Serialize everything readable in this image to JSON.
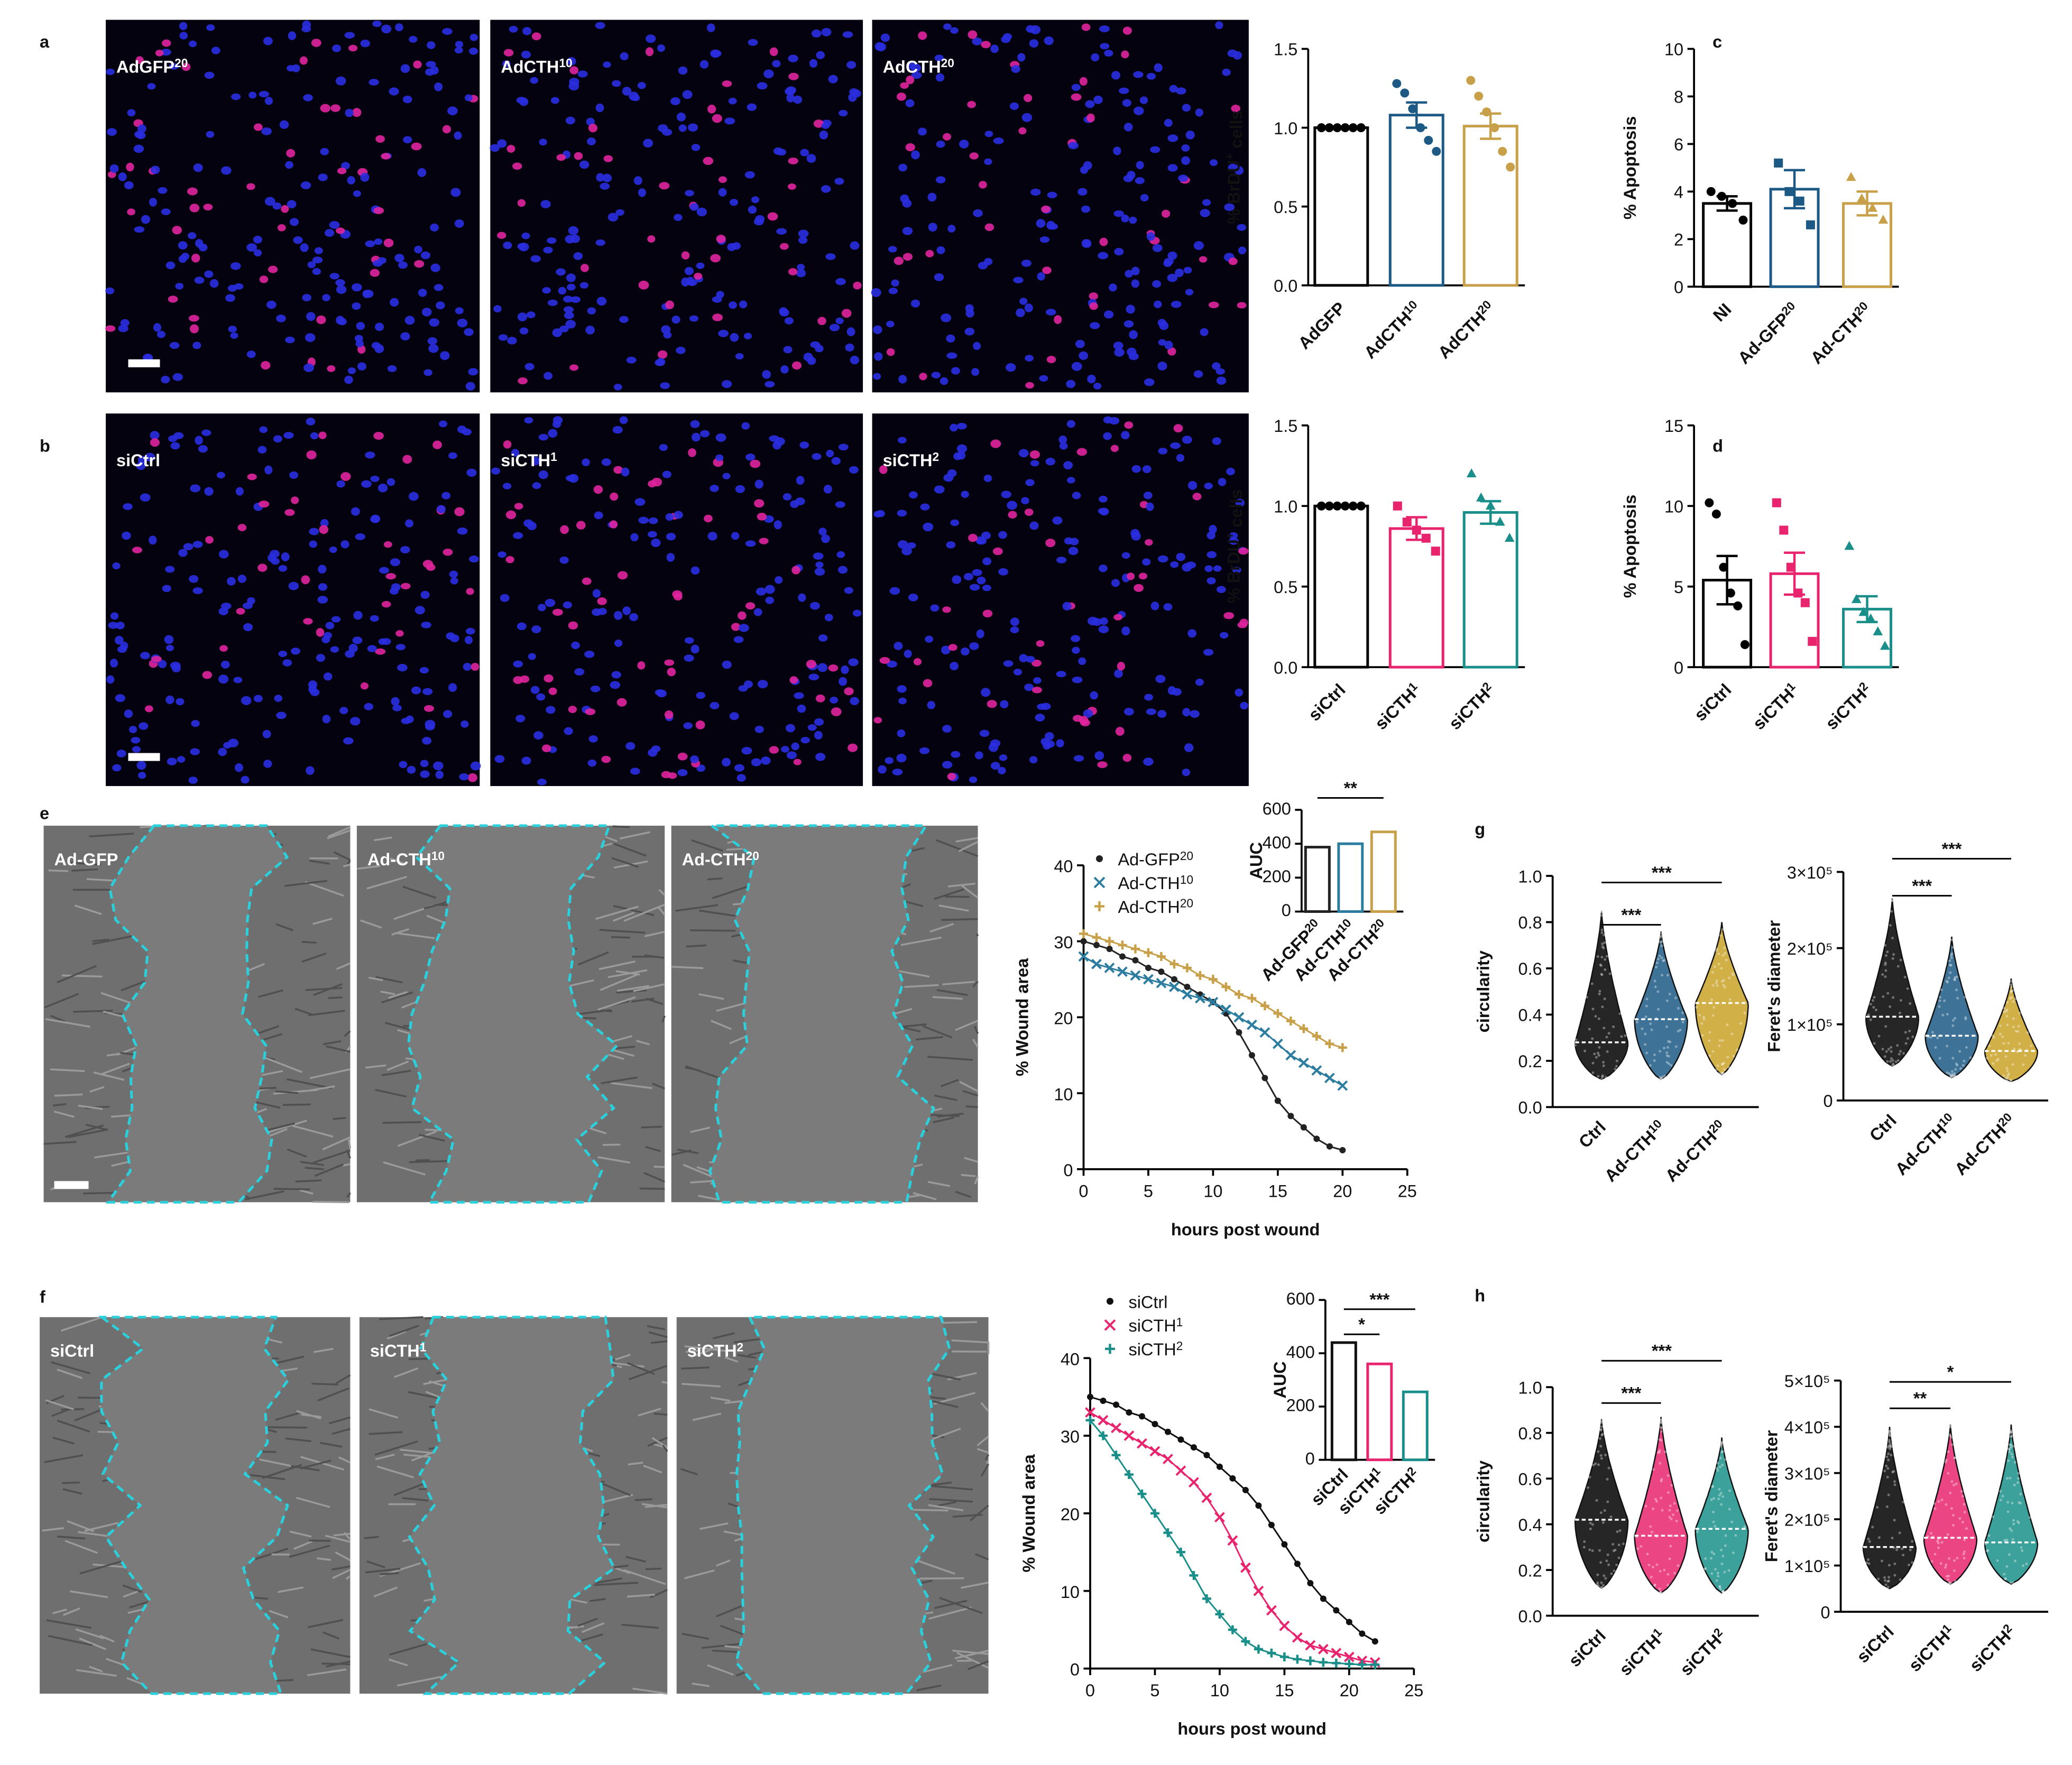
{
  "panel_letters": [
    "a",
    "b",
    "c",
    "d",
    "e",
    "f",
    "g",
    "h"
  ],
  "image_labels": {
    "a": [
      {
        "text": "AdGFP",
        "sup": "20"
      },
      {
        "text": "AdCTH",
        "sup": "10"
      },
      {
        "text": "AdCTH",
        "sup": "20"
      }
    ],
    "b": [
      "siCtrl",
      {
        "text": "siCTH",
        "sup": "1"
      },
      {
        "text": "siCTH",
        "sup": "2"
      }
    ],
    "e": [
      "Ad-GFP",
      {
        "text": "Ad-CTH",
        "sup": "10"
      },
      {
        "text": "Ad-CTH",
        "sup": "20"
      }
    ],
    "f": [
      "siCtrl",
      {
        "text": "siCTH",
        "sup": "1"
      },
      {
        "text": "siCTH",
        "sup": "2"
      }
    ]
  },
  "chart_data": [
    {
      "type": "bar",
      "ylabel": {
        "text": "% BrDU",
        "sup": "+",
        "after": " cells"
      },
      "categories": [
        "AdGFP",
        {
          "text": "AdCTH",
          "sup": "10"
        },
        {
          "text": "AdCTH",
          "sup": "20"
        }
      ],
      "values": [
        1,
        1.08,
        1.01
      ],
      "errors": [
        0,
        0.08,
        0.08
      ],
      "points": [
        [
          1,
          1,
          1,
          1,
          1,
          1
        ],
        [
          1.28,
          1.22,
          1.12,
          1,
          0.92,
          0.85
        ],
        [
          1.3,
          1.2,
          1.1,
          1,
          0.85,
          0.75
        ]
      ],
      "colors": [
        "#000000",
        "#1c5a85",
        "#c9a04a"
      ],
      "markers": [
        "circle",
        "circle",
        "circle"
      ],
      "ylim": [
        0,
        1.5
      ],
      "yticks": [
        {
          "value": 0,
          "label": "0.0"
        },
        0.5,
        {
          "value": 1,
          "label": "1.0"
        },
        1.5
      ]
    },
    {
      "type": "bar",
      "ylabel": "% Apoptosis",
      "categories": [
        "NI",
        {
          "text": "Ad-GFP",
          "sup": "20"
        },
        {
          "text": "Ad-CTH",
          "sup": "20"
        }
      ],
      "values": [
        3.5,
        4.1,
        3.5
      ],
      "errors": [
        0.3,
        0.8,
        0.5
      ],
      "points": [
        [
          4.0,
          3.8,
          3.5,
          2.8
        ],
        [
          5.2,
          4.0,
          3.6,
          2.6
        ],
        [
          4.6,
          3.7,
          3.3,
          2.8
        ]
      ],
      "colors": [
        "#000000",
        "#1c5a85",
        "#c9a04a"
      ],
      "markers": [
        "circle",
        "square",
        "triangle"
      ],
      "ylim": [
        0,
        10
      ],
      "yticks": [
        0,
        2,
        4,
        6,
        8,
        10
      ]
    },
    {
      "type": "bar",
      "ylabel": {
        "text": "% BrDU",
        "sup": "+",
        "after": " cells"
      },
      "categories": [
        "siCtrl",
        {
          "text": "siCTH",
          "sup": "1"
        },
        {
          "text": "siCTH",
          "sup": "2"
        }
      ],
      "values": [
        1,
        0.86,
        0.96
      ],
      "errors": [
        0,
        0.07,
        0.07
      ],
      "points": [
        [
          1,
          1,
          1,
          1,
          1,
          1
        ],
        [
          1.0,
          0.9,
          0.85,
          0.8,
          0.72
        ],
        [
          1.2,
          1.05,
          1.0,
          0.9,
          0.8
        ]
      ],
      "colors": [
        "#000000",
        "#e8246e",
        "#1a8f8a"
      ],
      "markers": [
        "circle",
        "square",
        "triangle"
      ],
      "ylim": [
        0,
        1.5
      ],
      "yticks": [
        {
          "value": 0,
          "label": "0.0"
        },
        0.5,
        {
          "value": 1,
          "label": "1.0"
        },
        1.5
      ]
    },
    {
      "type": "bar",
      "ylabel": "% Apoptosis",
      "categories": [
        "siCtrl",
        {
          "text": "siCTH",
          "sup": "1"
        },
        {
          "text": "siCTH",
          "sup": "2"
        }
      ],
      "values": [
        5.4,
        5.8,
        3.6
      ],
      "errors": [
        1.5,
        1.3,
        0.8
      ],
      "points": [
        [
          10.2,
          9.5,
          6.2,
          4.6,
          3.8,
          1.4
        ],
        [
          10.2,
          8.5,
          6.2,
          4.6,
          4.0,
          1.6
        ],
        [
          7.5,
          4.2,
          3.4,
          3.0,
          2.2,
          1.3
        ]
      ],
      "colors": [
        "#000000",
        "#e8246e",
        "#1a8f8a"
      ],
      "markers": [
        "circle",
        "square",
        "triangle"
      ],
      "ylim": [
        0,
        15
      ],
      "yticks": [
        0,
        5,
        10,
        15
      ]
    },
    {
      "type": "line",
      "xlabel": "hours post wound",
      "ylabel": "% Wound area",
      "legend": "top-left",
      "x": [
        0,
        1,
        2,
        3,
        4,
        5,
        6,
        7,
        8,
        9,
        10,
        11,
        12,
        13,
        14,
        15,
        16,
        17,
        18,
        19,
        20
      ],
      "xlim": [
        0,
        25
      ],
      "xticks": [
        0,
        5,
        10,
        15,
        20,
        25
      ],
      "ylim": [
        0,
        40
      ],
      "yticks": [
        0,
        10,
        20,
        30,
        40
      ],
      "series": [
        {
          "name": {
            "text": "Ad-GFP",
            "sup": "20"
          },
          "color": "#222222",
          "marker": "dot",
          "values": [
            30,
            29.5,
            29,
            28,
            27.5,
            26.5,
            26,
            25,
            24,
            23,
            22,
            20.5,
            18,
            15,
            12,
            9,
            7,
            5.5,
            4,
            3,
            2.5
          ]
        },
        {
          "name": {
            "text": "Ad-CTH",
            "sup": "10"
          },
          "color": "#2c7da0",
          "marker": "x",
          "values": [
            28,
            27,
            26.5,
            26,
            25.5,
            25,
            24.5,
            24,
            23,
            22.5,
            22,
            21,
            20,
            19,
            18,
            16.5,
            15,
            14,
            13,
            12,
            11
          ]
        },
        {
          "name": {
            "text": "Ad-CTH",
            "sup": "20"
          },
          "color": "#c9a04a",
          "marker": "plus",
          "values": [
            31,
            30.5,
            30,
            29.5,
            29,
            28.5,
            28,
            27,
            26.5,
            25.5,
            25,
            24,
            23,
            22.5,
            21.5,
            20.5,
            19.5,
            18.5,
            17.5,
            16.5,
            16
          ]
        }
      ],
      "inset": {
        "type": "bar",
        "ylabel": "AUC",
        "categories": [
          {
            "text": "Ad-GFP",
            "sup": "20"
          },
          {
            "text": "Ad-CTH",
            "sup": "10"
          },
          {
            "text": "Ad-CTH",
            "sup": "20"
          }
        ],
        "values": [
          380,
          400,
          470
        ],
        "colors": [
          "#222222",
          "#2c7da0",
          "#c9a04a"
        ],
        "ylim": [
          0,
          600
        ],
        "yticks": [
          0,
          200,
          400,
          600
        ],
        "significance": [
          {
            "from": 0,
            "to": 2,
            "label": "**"
          }
        ]
      }
    },
    {
      "type": "violin",
      "ylabel": "circularity",
      "categories": [
        "Ctrl",
        {
          "text": "Ad-CTH",
          "sup": "10"
        },
        {
          "text": "Ad-CTH",
          "sup": "20"
        }
      ],
      "min": [
        0.12,
        0.12,
        0.14
      ],
      "median": [
        0.28,
        0.38,
        0.45
      ],
      "max": [
        0.85,
        0.76,
        0.8
      ],
      "colors": [
        "#000000",
        "#1c5a85",
        "#c9a227"
      ],
      "ylim": [
        0,
        1
      ],
      "yticks": [
        {
          "value": 0,
          "label": "0.0"
        },
        0.2,
        0.4,
        0.6,
        0.8,
        {
          "value": 1,
          "label": "1.0"
        }
      ],
      "significance": [
        {
          "from": 0,
          "to": 1,
          "label": "***"
        },
        {
          "from": 0,
          "to": 2,
          "label": "***"
        }
      ]
    },
    {
      "type": "violin",
      "ylabel": "Feret's diameter",
      "categories": [
        "Ctrl",
        {
          "text": "Ad-CTH",
          "sup": "10"
        },
        {
          "text": "Ad-CTH",
          "sup": "20"
        }
      ],
      "min": [
        45000,
        30000,
        25000
      ],
      "median": [
        110000,
        85000,
        65000
      ],
      "max": [
        265000,
        215000,
        160000
      ],
      "colors": [
        "#000000",
        "#1c5a85",
        "#c9a227"
      ],
      "ylim": [
        0,
        300000
      ],
      "yticks": [
        0,
        {
          "value": 100000,
          "label": "1×10⁵"
        },
        {
          "value": 200000,
          "label": "2×10⁵"
        },
        {
          "value": 300000,
          "label": "3×10⁵"
        }
      ],
      "significance": [
        {
          "from": 0,
          "to": 1,
          "label": "***"
        },
        {
          "from": 0,
          "to": 2,
          "label": "***"
        }
      ]
    },
    {
      "type": "line",
      "xlabel": "hours post wound",
      "ylabel": "% Wound area",
      "legend": "top-left",
      "x": [
        0,
        1,
        2,
        3,
        4,
        5,
        6,
        7,
        8,
        9,
        10,
        11,
        12,
        13,
        14,
        15,
        16,
        17,
        18,
        19,
        20,
        21,
        22
      ],
      "xlim": [
        0,
        25
      ],
      "xticks": [
        0,
        5,
        10,
        15,
        20,
        25
      ],
      "ylim": [
        0,
        40
      ],
      "yticks": [
        0,
        10,
        20,
        30,
        40
      ],
      "series": [
        {
          "name": "siCtrl",
          "color": "#111111",
          "marker": "dot",
          "values": [
            35,
            34.5,
            34,
            33,
            32.5,
            31.5,
            30.5,
            29.5,
            28.5,
            27.5,
            26,
            24.5,
            23,
            21,
            18.5,
            16,
            13.5,
            11,
            9,
            7.5,
            6,
            4.5,
            3.5
          ]
        },
        {
          "name": {
            "text": "siCTH",
            "sup": "1"
          },
          "color": "#e8246e",
          "marker": "x",
          "values": [
            33,
            32,
            31,
            30,
            29,
            28,
            27,
            25.5,
            24,
            22,
            19.5,
            16.5,
            13,
            10,
            7.5,
            5.5,
            4,
            3,
            2.5,
            2,
            1.5,
            1,
            0.8
          ]
        },
        {
          "name": {
            "text": "siCTH",
            "sup": "2"
          },
          "color": "#1a8f8a",
          "marker": "plus",
          "values": [
            32,
            30,
            27.5,
            25,
            22.5,
            20,
            17.5,
            15,
            12,
            9,
            7,
            5,
            3.5,
            2.5,
            2,
            1.5,
            1.2,
            1,
            0.8,
            0.7,
            0.6,
            0.5,
            0.5
          ]
        }
      ],
      "inset": {
        "type": "bar",
        "ylabel": "AUC",
        "categories": [
          "siCtrl",
          {
            "text": "siCTH",
            "sup": "1"
          },
          {
            "text": "siCTH",
            "sup": "2"
          }
        ],
        "values": [
          440,
          360,
          255
        ],
        "colors": [
          "#111111",
          "#e8246e",
          "#1a8f8a"
        ],
        "ylim": [
          0,
          600
        ],
        "yticks": [
          0,
          200,
          400,
          600
        ],
        "significance": [
          {
            "from": 0,
            "to": 1,
            "label": "*"
          },
          {
            "from": 0,
            "to": 2,
            "label": "***"
          }
        ]
      }
    },
    {
      "type": "violin",
      "ylabel": "circularity",
      "categories": [
        "siCtrl",
        {
          "text": "siCTH",
          "sup": "1"
        },
        {
          "text": "siCTH",
          "sup": "2"
        }
      ],
      "min": [
        0.12,
        0.1,
        0.1
      ],
      "median": [
        0.42,
        0.35,
        0.38
      ],
      "max": [
        0.86,
        0.87,
        0.78
      ],
      "colors": [
        "#000000",
        "#e8246e",
        "#1a8f8a"
      ],
      "ylim": [
        0,
        1
      ],
      "yticks": [
        {
          "value": 0,
          "label": "0.0"
        },
        0.2,
        0.4,
        0.6,
        0.8,
        {
          "value": 1,
          "label": "1.0"
        }
      ],
      "significance": [
        {
          "from": 0,
          "to": 1,
          "label": "***"
        },
        {
          "from": 0,
          "to": 2,
          "label": "***"
        }
      ]
    },
    {
      "type": "violin",
      "ylabel": "Feret's diameter",
      "categories": [
        "siCtrl",
        {
          "text": "siCTH",
          "sup": "1"
        },
        {
          "text": "siCTH",
          "sup": "2"
        }
      ],
      "min": [
        50000,
        60000,
        60000
      ],
      "median": [
        140000,
        160000,
        150000
      ],
      "max": [
        400000,
        405000,
        405000
      ],
      "colors": [
        "#000000",
        "#e8246e",
        "#1a8f8a"
      ],
      "ylim": [
        0,
        500000
      ],
      "yticks": [
        0,
        {
          "value": 100000,
          "label": "1×10⁵"
        },
        {
          "value": 200000,
          "label": "2×10⁵"
        },
        {
          "value": 300000,
          "label": "3×10⁵"
        },
        {
          "value": 400000,
          "label": "4×10⁵"
        },
        {
          "value": 500000,
          "label": "5×10⁵"
        }
      ],
      "significance": [
        {
          "from": 0,
          "to": 1,
          "label": "**"
        },
        {
          "from": 0,
          "to": 2,
          "label": "*"
        }
      ]
    }
  ]
}
